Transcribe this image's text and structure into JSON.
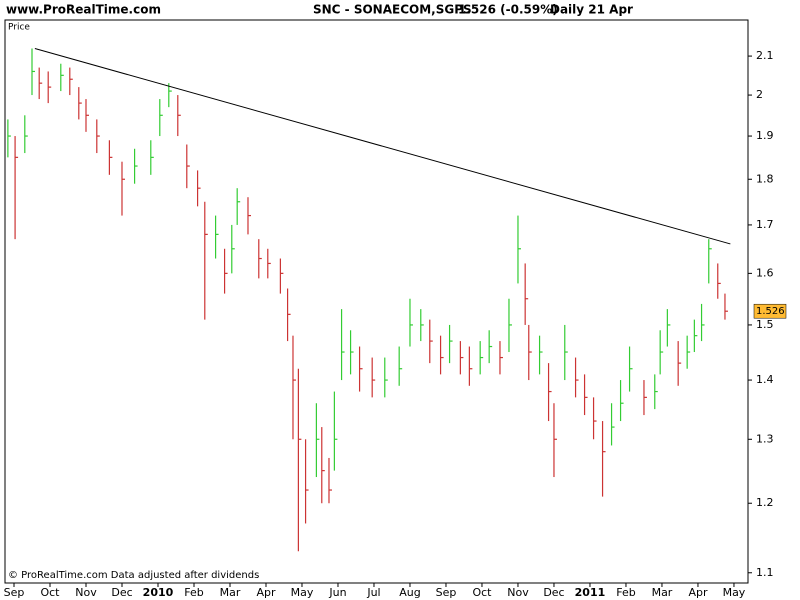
{
  "header": {
    "site": "www.ProRealTime.com",
    "symbol": "SNC - SONAECOM,SGPS",
    "quote": "1.526 (-0.59%)",
    "period": "Daily  21 Apr"
  },
  "footer": "© ProRealTime.com  Data adjusted after dividends",
  "chart_data": {
    "type": "ohlc",
    "y_label": "Price",
    "log_scale": true,
    "up_color": "#33cc33",
    "down_color": "#cc3333",
    "x": [
      -0.17,
      0.03,
      0.3,
      0.5,
      0.7,
      0.95,
      1.3,
      1.55,
      1.8,
      2.0,
      2.3,
      2.65,
      3.0,
      3.35,
      3.8,
      4.05,
      4.3,
      4.55,
      4.8,
      5.1,
      5.3,
      5.6,
      5.85,
      6.05,
      6.2,
      6.5,
      6.8,
      7.05,
      7.4,
      7.6,
      7.75,
      7.9,
      8.1,
      8.4,
      8.55,
      8.75,
      8.9,
      9.1,
      9.35,
      9.6,
      9.95,
      10.3,
      10.7,
      11.0,
      11.3,
      11.55,
      11.85,
      12.1,
      12.4,
      12.65,
      12.95,
      13.2,
      13.5,
      13.75,
      14.0,
      14.2,
      14.3,
      14.6,
      14.85,
      15.0,
      15.3,
      15.6,
      15.85,
      16.1,
      16.35,
      16.6,
      16.85,
      17.1,
      17.5,
      17.8,
      17.95,
      18.15,
      18.45,
      18.7,
      18.9,
      19.1,
      19.3,
      19.55,
      19.75
    ],
    "high": [
      1.94,
      1.9,
      1.95,
      2.12,
      2.07,
      2.06,
      2.08,
      2.07,
      2.02,
      1.99,
      1.94,
      1.89,
      1.84,
      1.87,
      1.89,
      1.99,
      2.03,
      2.0,
      1.88,
      1.82,
      1.75,
      1.72,
      1.65,
      1.7,
      1.78,
      1.76,
      1.67,
      1.65,
      1.63,
      1.57,
      1.48,
      1.42,
      1.3,
      1.36,
      1.32,
      1.27,
      1.38,
      1.53,
      1.49,
      1.46,
      1.44,
      1.44,
      1.46,
      1.55,
      1.53,
      1.51,
      1.48,
      1.5,
      1.47,
      1.46,
      1.47,
      1.49,
      1.47,
      1.55,
      1.72,
      1.62,
      1.5,
      1.48,
      1.43,
      1.36,
      1.5,
      1.44,
      1.41,
      1.37,
      1.33,
      1.36,
      1.4,
      1.46,
      1.4,
      1.41,
      1.49,
      1.53,
      1.47,
      1.48,
      1.51,
      1.54,
      1.67,
      1.62,
      1.56
    ],
    "low": [
      1.85,
      1.67,
      1.86,
      2.0,
      1.99,
      1.98,
      2.01,
      2.0,
      1.94,
      1.91,
      1.86,
      1.81,
      1.72,
      1.79,
      1.81,
      1.9,
      1.97,
      1.9,
      1.78,
      1.74,
      1.51,
      1.63,
      1.56,
      1.6,
      1.7,
      1.68,
      1.59,
      1.59,
      1.56,
      1.47,
      1.3,
      1.13,
      1.17,
      1.24,
      1.2,
      1.2,
      1.25,
      1.4,
      1.41,
      1.38,
      1.37,
      1.37,
      1.39,
      1.46,
      1.47,
      1.43,
      1.41,
      1.43,
      1.41,
      1.39,
      1.41,
      1.43,
      1.41,
      1.45,
      1.58,
      1.5,
      1.4,
      1.41,
      1.33,
      1.24,
      1.4,
      1.37,
      1.34,
      1.3,
      1.21,
      1.29,
      1.33,
      1.38,
      1.34,
      1.35,
      1.41,
      1.46,
      1.39,
      1.42,
      1.45,
      1.47,
      1.58,
      1.55,
      1.51
    ],
    "close": [
      1.9,
      1.85,
      1.9,
      2.06,
      2.03,
      2.02,
      2.05,
      2.04,
      1.98,
      1.95,
      1.9,
      1.85,
      1.8,
      1.83,
      1.85,
      1.95,
      2.01,
      1.95,
      1.83,
      1.78,
      1.68,
      1.68,
      1.6,
      1.65,
      1.75,
      1.72,
      1.63,
      1.62,
      1.6,
      1.52,
      1.4,
      1.3,
      1.22,
      1.3,
      1.25,
      1.22,
      1.3,
      1.45,
      1.45,
      1.42,
      1.4,
      1.4,
      1.42,
      1.5,
      1.5,
      1.47,
      1.44,
      1.47,
      1.44,
      1.42,
      1.44,
      1.46,
      1.44,
      1.5,
      1.65,
      1.55,
      1.45,
      1.45,
      1.38,
      1.3,
      1.45,
      1.4,
      1.37,
      1.33,
      1.28,
      1.32,
      1.36,
      1.42,
      1.37,
      1.38,
      1.45,
      1.5,
      1.43,
      1.45,
      1.48,
      1.5,
      1.65,
      1.58,
      1.526
    ],
    "trendline": {
      "x": [
        0.58,
        19.9
      ],
      "y": [
        2.12,
        1.66
      ],
      "color": "#000000"
    },
    "last_price": 1.526,
    "last_price_color": "#ffbb33",
    "xlim": [
      -0.25,
      20.39
    ],
    "xticks": [
      {
        "value": 0,
        "label": "Sep"
      },
      {
        "value": 1,
        "label": "Oct"
      },
      {
        "value": 2,
        "label": "Nov"
      },
      {
        "value": 3,
        "label": "Dec"
      },
      {
        "value": 4,
        "label": "2010"
      },
      {
        "value": 5,
        "label": "Feb"
      },
      {
        "value": 6,
        "label": "Mar"
      },
      {
        "value": 7,
        "label": "Apr"
      },
      {
        "value": 8,
        "label": "May"
      },
      {
        "value": 9,
        "label": "Jun"
      },
      {
        "value": 10,
        "label": "Jul"
      },
      {
        "value": 11,
        "label": "Aug"
      },
      {
        "value": 12,
        "label": "Sep"
      },
      {
        "value": 13,
        "label": "Oct"
      },
      {
        "value": 14,
        "label": "Nov"
      },
      {
        "value": 15,
        "label": "Dec"
      },
      {
        "value": 16,
        "label": "2011"
      },
      {
        "value": 17,
        "label": "Feb"
      },
      {
        "value": 18,
        "label": "Mar"
      },
      {
        "value": 19,
        "label": "Apr"
      },
      {
        "value": 20,
        "label": "May"
      }
    ],
    "ylim": [
      1.086,
      2.197
    ],
    "yticks": [
      1.1,
      1.2,
      1.3,
      1.4,
      1.5,
      1.6,
      1.7,
      1.8,
      1.9,
      2,
      2.1
    ]
  }
}
